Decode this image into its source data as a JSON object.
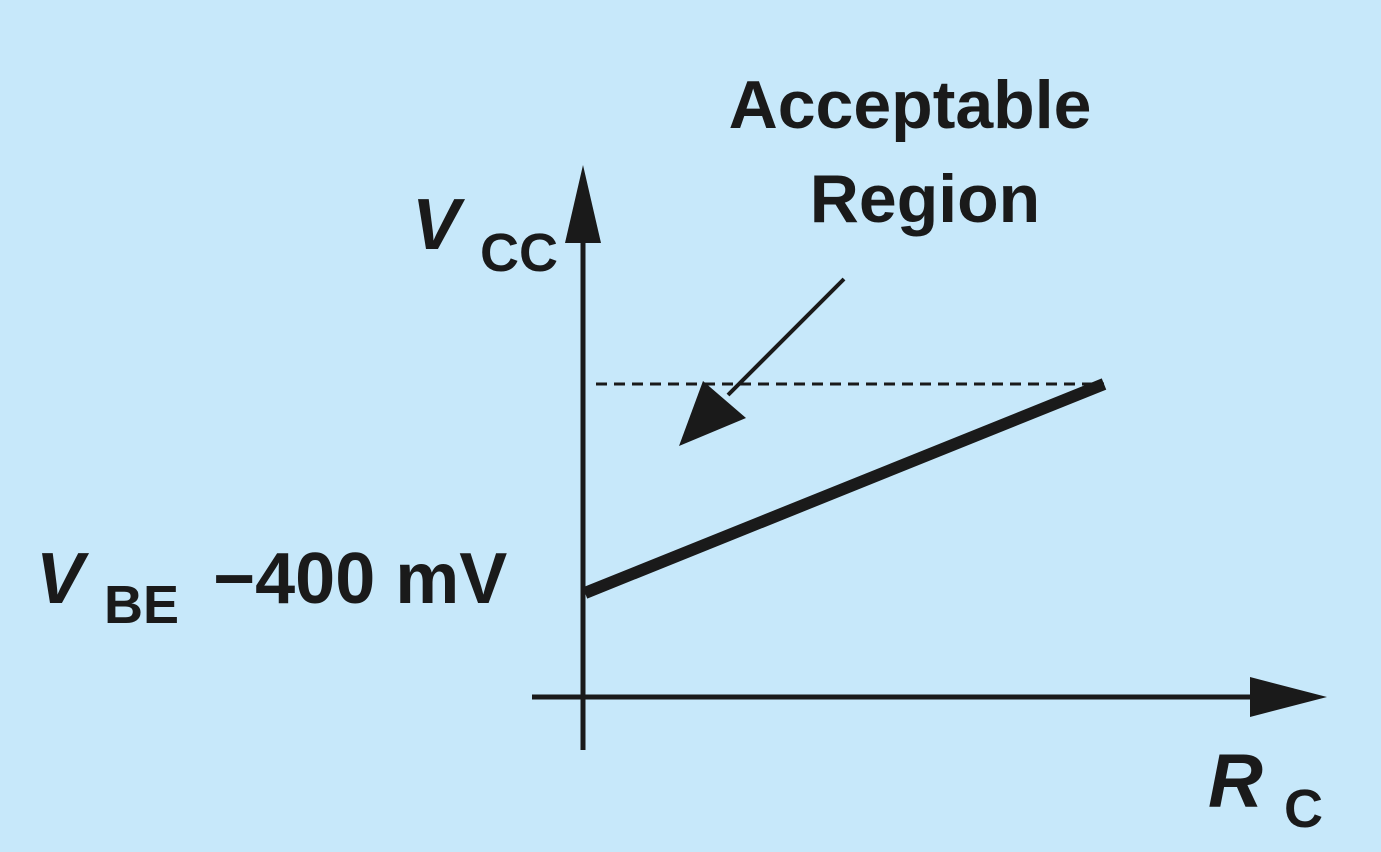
{
  "colors": {
    "background": "#c7e8fa",
    "ink": "#1a1a1a"
  },
  "labels": {
    "y_axis_main": "V",
    "y_axis_sub": "CC",
    "x_axis_main": "R",
    "x_axis_sub": "C",
    "intercept_main": "V",
    "intercept_sub": "BE",
    "intercept_rest": "−400 mV",
    "region_line1": "Acceptable",
    "region_line2": "Region"
  }
}
